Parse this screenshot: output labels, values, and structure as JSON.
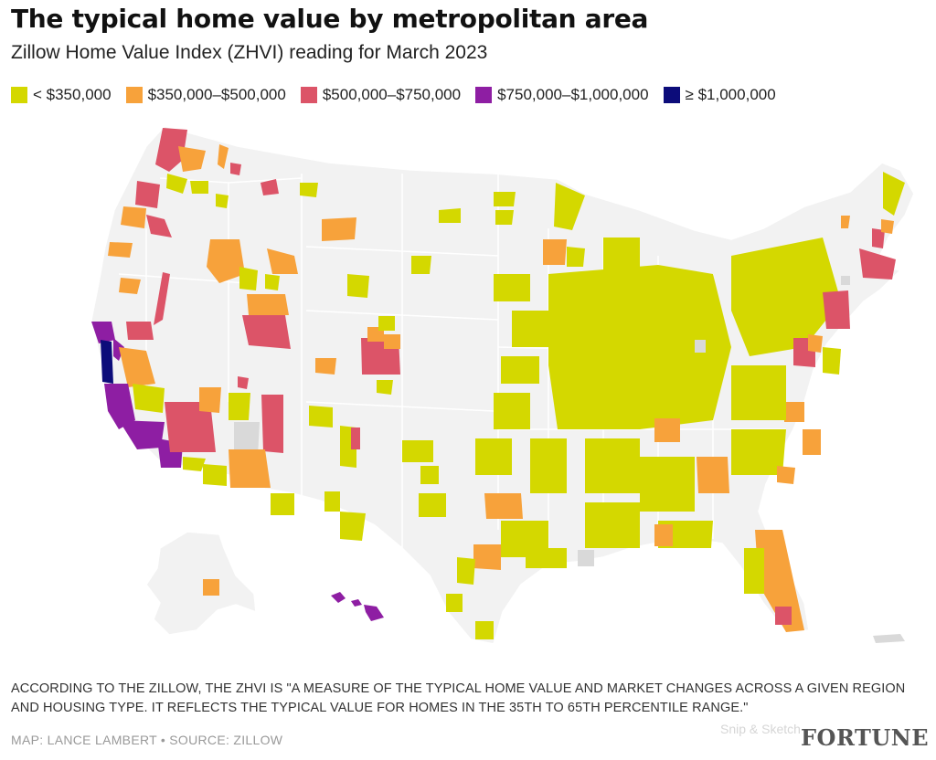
{
  "header": {
    "title": "The typical home value by metropolitan area",
    "subtitle": "Zillow Home Value Index (ZHVI) reading for March 2023"
  },
  "legend": [
    {
      "label": "< $350,000",
      "color": "#d4d800"
    },
    {
      "label": "$350,000–$500,000",
      "color": "#f7a23b"
    },
    {
      "label": "$500,000–$750,000",
      "color": "#dc5468"
    },
    {
      "label": "$750,000–$1,000,000",
      "color": "#8e1ea3"
    },
    {
      "label": "≥ $1,000,000",
      "color": "#0c0c7a"
    }
  ],
  "colors": {
    "land": "#f2f2f2",
    "borders": "#ffffff",
    "no_data": "#d9d9d9"
  },
  "footer": {
    "note": "ACCORDING TO THE ZILLOW, THE ZHVI IS \"A MEASURE OF THE TYPICAL HOME VALUE AND MARKET CHANGES ACROSS A GIVEN REGION AND HOUSING TYPE. IT REFLECTS THE TYPICAL VALUE FOR HOMES IN THE 35TH TO 65TH PERCENTILE RANGE.\"",
    "credit": "MAP: LANCE LAMBERT • SOURCE: ZILLOW",
    "watermark": "Snip & Sketch",
    "brand": "FORTUNE"
  }
}
